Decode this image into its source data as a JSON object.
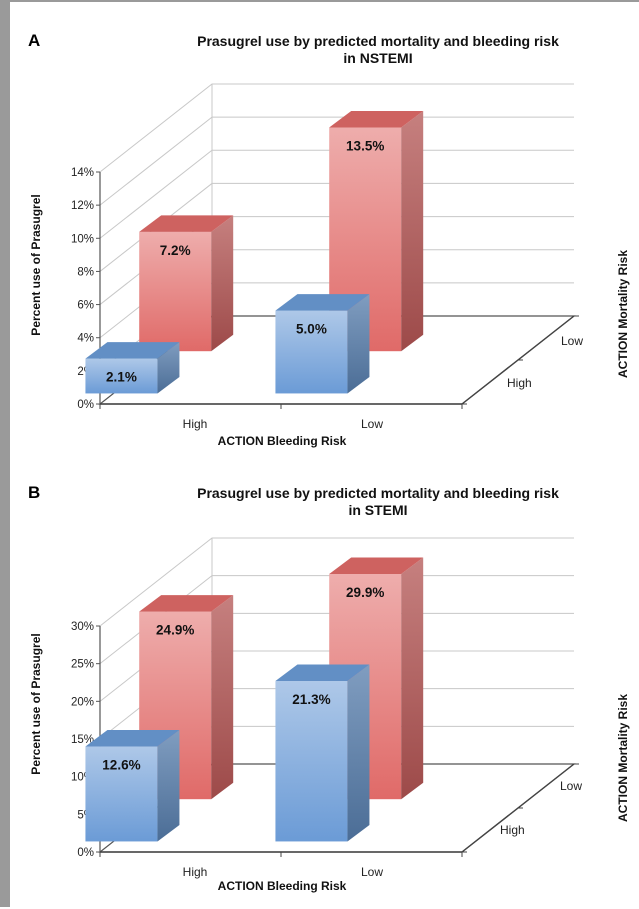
{
  "chart_data": [
    {
      "panel_label": "A",
      "type": "bar",
      "subtype": "3d-bar",
      "title": "Prasugrel use by predicted mortality and bleeding risk",
      "subtitle": "in NSTEMI",
      "xlabel": "ACTION Bleeding Risk",
      "ylabel": "Percent use of Prasugrel",
      "zlabel": "ACTION Mortality Risk",
      "categories": [
        "High",
        "Low"
      ],
      "depth_categories": [
        "High",
        "Low"
      ],
      "yticks": [
        "0%",
        "2%",
        "4%",
        "6%",
        "8%",
        "10%",
        "12%",
        "14%"
      ],
      "ylim": [
        0,
        14
      ],
      "grid": true,
      "series": [
        {
          "name": "High",
          "values": [
            2.1,
            5.0
          ],
          "labels": [
            "2.1%",
            "5.0%"
          ],
          "color": "#6b9bd6"
        },
        {
          "name": "Low",
          "values": [
            7.2,
            13.5
          ],
          "labels": [
            "7.2%",
            "13.5%"
          ],
          "color": "#e06a68"
        }
      ]
    },
    {
      "panel_label": "B",
      "type": "bar",
      "subtype": "3d-bar",
      "title": "Prasugrel use by predicted mortality and bleeding risk",
      "subtitle": "in STEMI",
      "xlabel": "ACTION Bleeding Risk",
      "ylabel": "Percent use of Prasugrel",
      "zlabel": "ACTION Mortality Risk",
      "categories": [
        "High",
        "Low"
      ],
      "depth_categories": [
        "High",
        "Low"
      ],
      "yticks": [
        "0%",
        "5%",
        "10%",
        "15%",
        "20%",
        "25%",
        "30%"
      ],
      "ylim": [
        0,
        30
      ],
      "grid": true,
      "series": [
        {
          "name": "High",
          "values": [
            12.6,
            21.3
          ],
          "labels": [
            "12.6%",
            "21.3%"
          ],
          "color": "#6b9bd6"
        },
        {
          "name": "Low",
          "values": [
            24.9,
            29.9
          ],
          "labels": [
            "24.9%",
            "29.9%"
          ],
          "color": "#e06a68"
        }
      ]
    }
  ]
}
